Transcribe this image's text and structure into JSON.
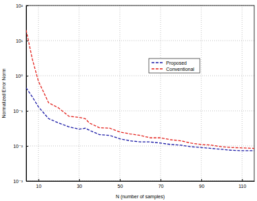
{
  "chart_data": {
    "type": "line",
    "x_label": "N (number of samples)",
    "y_label": "Normalized Error Norm",
    "x": [
      4,
      7,
      10,
      15,
      20,
      25,
      30,
      33,
      35,
      40,
      45,
      50,
      55,
      60,
      65,
      70,
      75,
      80,
      85,
      90,
      95,
      100,
      105,
      110,
      116
    ],
    "series": [
      {
        "name": "Proposed",
        "color": "#1a1aa6",
        "line_style": "dashed",
        "values": [
          0.45,
          0.25,
          0.13,
          0.06,
          0.045,
          0.035,
          0.03,
          0.032,
          0.028,
          0.021,
          0.02,
          0.016,
          0.014,
          0.013,
          0.013,
          0.012,
          0.011,
          0.0105,
          0.0095,
          0.009,
          0.0085,
          0.008,
          0.0075,
          0.0073,
          0.0073
        ]
      },
      {
        "name": "Conventional",
        "color": "#e3201b",
        "line_style": "dashed",
        "values": [
          20,
          3,
          0.7,
          0.17,
          0.12,
          0.07,
          0.065,
          0.06,
          0.045,
          0.033,
          0.032,
          0.025,
          0.022,
          0.02,
          0.017,
          0.017,
          0.015,
          0.014,
          0.012,
          0.011,
          0.0105,
          0.0095,
          0.009,
          0.0088,
          0.0085
        ]
      }
    ],
    "xlim": [
      4,
      116
    ],
    "xticks": [
      10,
      30,
      50,
      70,
      90,
      110
    ],
    "ylim": [
      0.001,
      100
    ],
    "yticks": [
      {
        "value": 0.001,
        "label": "10⁻³"
      },
      {
        "value": 0.01,
        "label": "10⁻²"
      },
      {
        "value": 0.1,
        "label": "10⁻¹"
      },
      {
        "value": 1,
        "label": "10⁰"
      },
      {
        "value": 10,
        "label": "10¹"
      },
      {
        "value": 100,
        "label": "10²"
      }
    ],
    "log": "y",
    "grid": true,
    "legend": "right"
  }
}
